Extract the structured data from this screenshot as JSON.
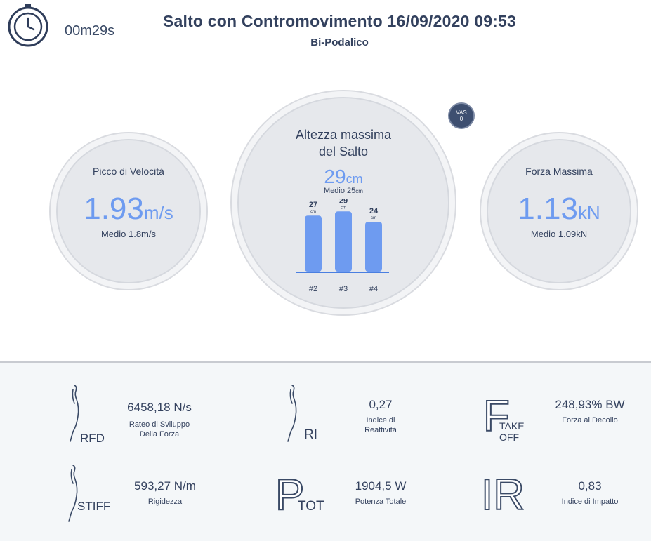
{
  "header": {
    "timer": "00m29s",
    "title": "Salto con Contromovimento 16/09/2020 09:53",
    "subtitle": "Bi-Podalico"
  },
  "left": {
    "label": "Picco di Velocità",
    "value": "1.93",
    "unit": "m/s",
    "medio": "Medio 1.8m/s"
  },
  "center": {
    "title_line1": "Altezza massima",
    "title_line2": "del Salto",
    "value": "29",
    "unit": "cm",
    "medio_prefix": "Medio 25",
    "medio_unit": "cm",
    "vas_top": "VAS",
    "vas_bottom": "0"
  },
  "right": {
    "label": "Forza Massima",
    "value": "1.13",
    "unit": "kN",
    "medio": "Medio 1.09kN"
  },
  "chart_data": {
    "type": "bar",
    "categories": [
      "#2",
      "#3",
      "#4"
    ],
    "values": [
      27,
      29,
      24
    ],
    "value_unit": "cm",
    "value_labels": [
      "27",
      "29",
      "24"
    ],
    "color": "#6e9bf0"
  },
  "metrics": {
    "rfd": {
      "code": "RFD",
      "value": "6458,18 N/s",
      "desc_line1": "Rateo di Sviluppo",
      "desc_line2": "Della Forza"
    },
    "ri": {
      "code": "RI",
      "value": "0,27",
      "desc_line1": "Indice di",
      "desc_line2": "Reattività"
    },
    "takeoff": {
      "letter": "F",
      "code_line1": "TAKE",
      "code_line2": "OFF",
      "value": "248,93% BW",
      "desc_line1": "Forza al Decollo"
    },
    "stiff": {
      "code": "STIFF",
      "value": "593,27 N/m",
      "desc_line1": "Rigidezza"
    },
    "ptot": {
      "letter": "P",
      "code": "TOT",
      "value": "1904,5 W",
      "desc_line1": "Potenza Totale"
    },
    "ir": {
      "letter": "IR",
      "value": "0,83",
      "desc_line1": "Indice di Impatto"
    }
  }
}
